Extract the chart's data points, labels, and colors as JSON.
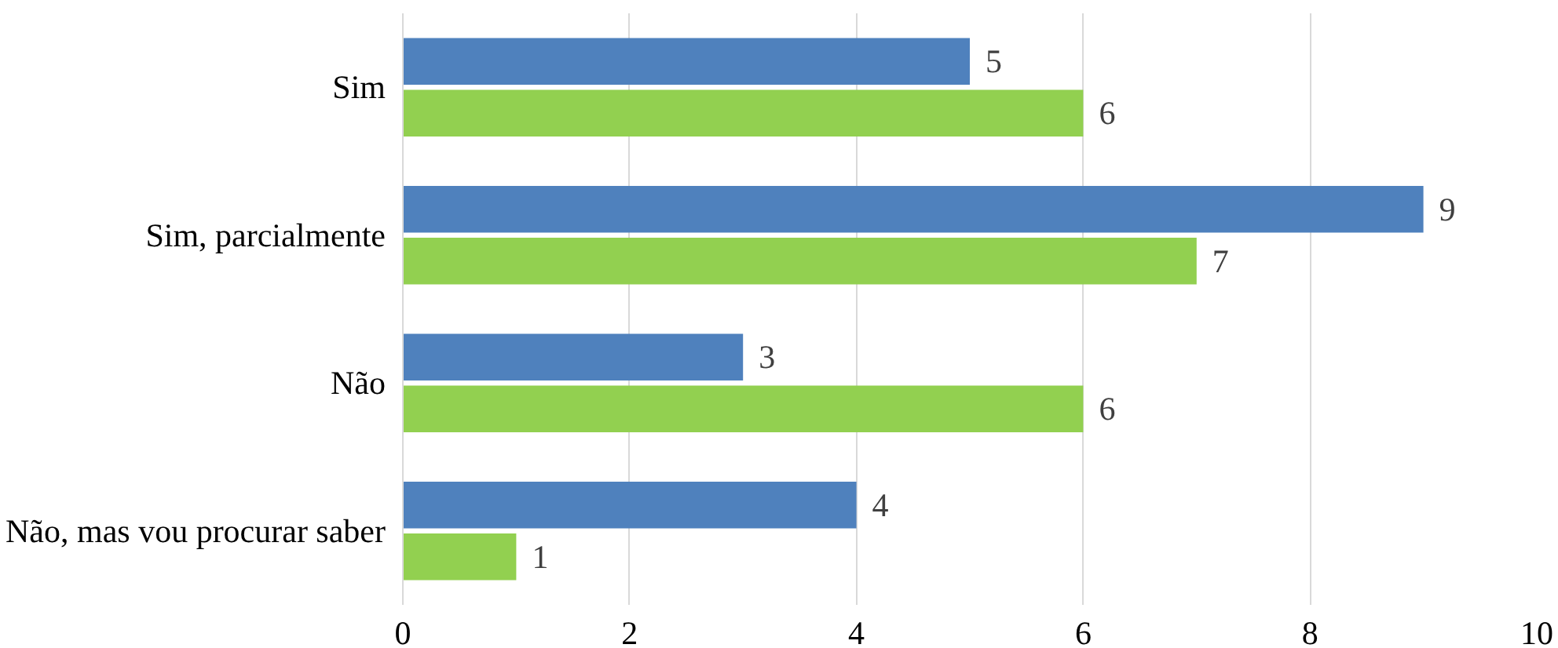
{
  "chart_data": {
    "type": "bar",
    "orientation": "horizontal",
    "categories": [
      "Sim",
      "Sim, parcialmente",
      "Não",
      "Não, mas vou procurar saber"
    ],
    "series": [
      {
        "color": "#4f81bd",
        "values": [
          5,
          9,
          3,
          4
        ]
      },
      {
        "color": "#92d050",
        "values": [
          6,
          7,
          6,
          1
        ]
      }
    ],
    "xlim": [
      0,
      10
    ],
    "xticks": [
      0,
      2,
      4,
      6,
      8,
      10
    ],
    "grid": "x",
    "data_labels": true
  }
}
